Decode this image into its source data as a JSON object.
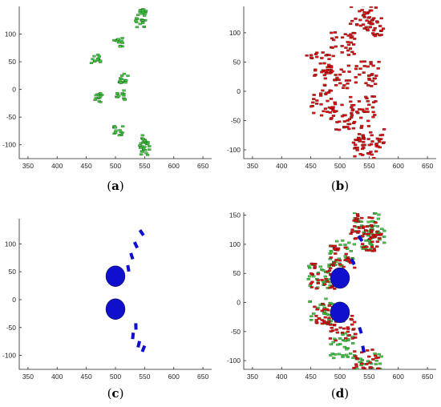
{
  "colors": {
    "green": "#3ec93e",
    "red": "#dd1111",
    "blue": "#1010cc",
    "axis": "#262626"
  },
  "chart_data": [
    {
      "type": "scatter",
      "panel_label": [
        "(",
        "a",
        ")"
      ],
      "xlim": [
        335,
        665
      ],
      "ylim": [
        -125,
        150
      ],
      "xticks": [
        350,
        400,
        450,
        500,
        550,
        600,
        650
      ],
      "yticks": [
        -100,
        -50,
        0,
        50,
        100
      ],
      "grid": false,
      "series": [
        {
          "color": "green",
          "shape": "outline",
          "points": [
            [
              467,
              55
            ],
            [
              505,
              85
            ],
            [
              545,
              140
            ],
            [
              543,
              120
            ],
            [
              515,
              20
            ],
            [
              508,
              -10
            ],
            [
              470,
              -15
            ],
            [
              505,
              -75
            ],
            [
              550,
              -110
            ],
            [
              548,
              -90
            ]
          ]
        }
      ]
    },
    {
      "type": "scatter",
      "panel_label": [
        "(",
        "b",
        ")"
      ],
      "xlim": [
        335,
        665
      ],
      "ylim": [
        -115,
        145
      ],
      "xticks": [
        350,
        400,
        450,
        500,
        550,
        600,
        650
      ],
      "yticks": [
        -100,
        -50,
        0,
        50,
        100
      ],
      "grid": false,
      "series": [
        {
          "color": "red",
          "shape": "filled",
          "points": [
            [
              465,
              45
            ],
            [
              505,
              80
            ],
            [
              540,
              130
            ],
            [
              555,
              110
            ],
            [
              545,
              30
            ],
            [
              495,
              25
            ],
            [
              470,
              -20
            ],
            [
              505,
              -45
            ],
            [
              545,
              -100
            ],
            [
              555,
              -80
            ],
            [
              540,
              -30
            ]
          ]
        }
      ]
    },
    {
      "type": "scatter",
      "panel_label": [
        "(",
        "c",
        ")"
      ],
      "xlim": [
        335,
        665
      ],
      "ylim": [
        -125,
        145
      ],
      "xticks": [
        350,
        400,
        450,
        500,
        550,
        600,
        650
      ],
      "yticks": [
        -100,
        -50,
        0,
        50,
        100
      ],
      "grid": false,
      "series": [
        {
          "color": "blue",
          "shape": "clusters",
          "points": [
            [
              500,
              42
            ],
            [
              500,
              -17
            ],
            [
              545,
              120
            ],
            [
              535,
              98
            ],
            [
              528,
              78
            ],
            [
              522,
              56
            ],
            [
              535,
              -48
            ],
            [
              530,
              -65
            ],
            [
              540,
              -80
            ],
            [
              548,
              -88
            ]
          ]
        }
      ]
    },
    {
      "type": "scatter",
      "panel_label": [
        "(",
        "d",
        ")"
      ],
      "xlim": [
        335,
        665
      ],
      "ylim": [
        -115,
        155
      ],
      "xticks": [
        350,
        400,
        450,
        500,
        550,
        600,
        650
      ],
      "yticks": [
        -100,
        -50,
        0,
        50,
        100,
        150
      ],
      "grid": false,
      "series": [
        {
          "color": "green",
          "shape": "filled",
          "points": [
            [
              465,
              45
            ],
            [
              505,
              85
            ],
            [
              545,
              140
            ],
            [
              555,
              110
            ],
            [
              470,
              -15
            ],
            [
              505,
              -75
            ],
            [
              550,
              -110
            ]
          ]
        },
        {
          "color": "red",
          "shape": "filled",
          "points": [
            [
              470,
              45
            ],
            [
              505,
              80
            ],
            [
              540,
              130
            ],
            [
              550,
              110
            ],
            [
              475,
              -20
            ],
            [
              505,
              -45
            ],
            [
              545,
              -100
            ]
          ]
        },
        {
          "color": "blue",
          "shape": "clusters",
          "points": [
            [
              500,
              42
            ],
            [
              500,
              -17
            ],
            [
              535,
              110
            ],
            [
              522,
              70
            ],
            [
              535,
              -48
            ],
            [
              540,
              -80
            ]
          ]
        }
      ]
    }
  ]
}
